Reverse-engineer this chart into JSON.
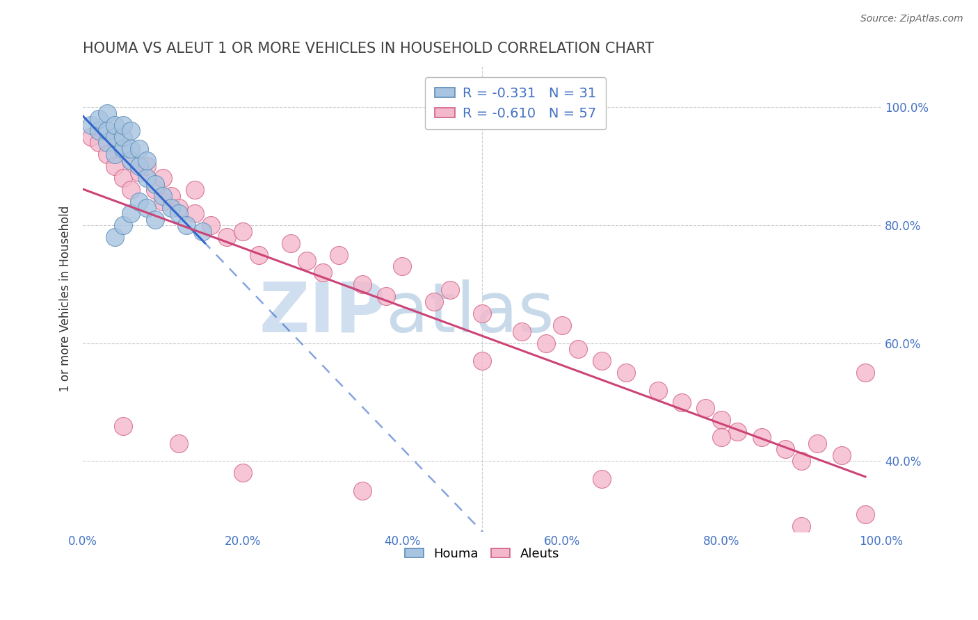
{
  "title": "HOUMA VS ALEUT 1 OR MORE VEHICLES IN HOUSEHOLD CORRELATION CHART",
  "source": "Source: ZipAtlas.com",
  "ylabel": "1 or more Vehicles in Household",
  "xlim": [
    0.0,
    1.0
  ],
  "ylim": [
    0.28,
    1.07
  ],
  "houma_color": "#a8c4e0",
  "aleut_color": "#f4b8cc",
  "houma_edge": "#5b8db8",
  "aleut_edge": "#d06080",
  "houma_line_color": "#3366cc",
  "aleut_line_color": "#cc4477",
  "houma_R": -0.331,
  "houma_N": 31,
  "aleut_R": -0.61,
  "aleut_N": 57,
  "grid_color": "#cccccc",
  "title_color": "#404040",
  "tick_label_color": "#4472c4",
  "houma_x": [
    0.01,
    0.02,
    0.02,
    0.03,
    0.03,
    0.03,
    0.04,
    0.04,
    0.04,
    0.05,
    0.05,
    0.05,
    0.06,
    0.06,
    0.06,
    0.07,
    0.07,
    0.08,
    0.08,
    0.09,
    0.1,
    0.11,
    0.12,
    0.13,
    0.15,
    0.04,
    0.05,
    0.06,
    0.07,
    0.08,
    0.09
  ],
  "houma_y": [
    0.97,
    0.96,
    0.98,
    0.94,
    0.96,
    0.99,
    0.92,
    0.95,
    0.97,
    0.93,
    0.95,
    0.97,
    0.91,
    0.93,
    0.96,
    0.9,
    0.93,
    0.88,
    0.91,
    0.87,
    0.85,
    0.83,
    0.82,
    0.8,
    0.79,
    0.78,
    0.8,
    0.82,
    0.84,
    0.83,
    0.81
  ],
  "aleut_x": [
    0.01,
    0.02,
    0.03,
    0.04,
    0.04,
    0.05,
    0.06,
    0.06,
    0.07,
    0.08,
    0.09,
    0.1,
    0.1,
    0.11,
    0.12,
    0.14,
    0.14,
    0.16,
    0.18,
    0.2,
    0.22,
    0.26,
    0.28,
    0.3,
    0.32,
    0.35,
    0.38,
    0.4,
    0.44,
    0.46,
    0.5,
    0.55,
    0.58,
    0.6,
    0.62,
    0.65,
    0.68,
    0.72,
    0.75,
    0.78,
    0.8,
    0.82,
    0.85,
    0.88,
    0.9,
    0.92,
    0.95,
    0.98,
    0.05,
    0.12,
    0.2,
    0.35,
    0.5,
    0.65,
    0.8,
    0.9,
    0.98
  ],
  "aleut_y": [
    0.95,
    0.94,
    0.92,
    0.9,
    0.95,
    0.88,
    0.91,
    0.86,
    0.89,
    0.9,
    0.86,
    0.84,
    0.88,
    0.85,
    0.83,
    0.82,
    0.86,
    0.8,
    0.78,
    0.79,
    0.75,
    0.77,
    0.74,
    0.72,
    0.75,
    0.7,
    0.68,
    0.73,
    0.67,
    0.69,
    0.65,
    0.62,
    0.6,
    0.63,
    0.59,
    0.57,
    0.55,
    0.52,
    0.5,
    0.49,
    0.47,
    0.45,
    0.44,
    0.42,
    0.4,
    0.43,
    0.41,
    0.55,
    0.46,
    0.43,
    0.38,
    0.35,
    0.57,
    0.37,
    0.44,
    0.29,
    0.31
  ],
  "x_tick_vals": [
    0.0,
    0.2,
    0.4,
    0.6,
    0.8,
    1.0
  ],
  "x_tick_labels": [
    "0.0%",
    "20.0%",
    "40.0%",
    "60.0%",
    "80.0%",
    "100.0%"
  ],
  "y_tick_vals": [
    0.4,
    0.6,
    0.8,
    1.0
  ],
  "y_tick_labels": [
    "40.0%",
    "60.0%",
    "80.0%",
    "100.0%"
  ]
}
